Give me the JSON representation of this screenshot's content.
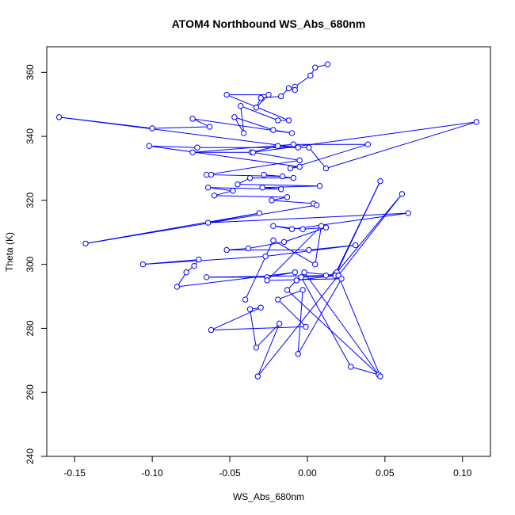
{
  "chart_data": {
    "type": "line",
    "title": "ATOM4 Northbound WS_Abs_680nm",
    "xlabel": "WS_Abs_680nm",
    "ylabel": "Theta (K)",
    "xlim": [
      -0.168,
      0.118
    ],
    "ylim": [
      240,
      368
    ],
    "xticks": [
      -0.15,
      -0.1,
      -0.05,
      0.0,
      0.05,
      0.1
    ],
    "xtick_labels": [
      "-0.15",
      "-0.10",
      "-0.05",
      "0.00",
      "0.05",
      "0.10"
    ],
    "yticks": [
      240,
      260,
      280,
      300,
      320,
      340,
      360
    ],
    "ytick_labels": [
      "240",
      "260",
      "280",
      "300",
      "320",
      "340",
      "360"
    ],
    "grid": false,
    "series_color": "#0000ff",
    "marker": "open-circle",
    "series": [
      {
        "x": [
          0.013,
          0.005,
          0.002,
          -0.008,
          -0.008,
          -0.012,
          -0.017,
          -0.03,
          -0.033,
          -0.025,
          -0.052,
          -0.012,
          -0.019,
          -0.043,
          -0.041,
          -0.047,
          -0.022,
          -0.01,
          -0.074,
          -0.063,
          -0.1,
          -0.16,
          -0.006,
          -0.019,
          -0.036,
          -0.074,
          -0.009,
          0.039,
          -0.011,
          -0.005,
          -0.102,
          -0.071,
          0.001,
          0.012,
          0.109,
          -0.035,
          -0.005,
          -0.065,
          -0.062,
          -0.016,
          -0.028,
          -0.009,
          -0.037,
          -0.045,
          0.008,
          -0.029,
          -0.017,
          -0.064,
          -0.048,
          -0.06,
          -0.013,
          -0.023,
          0.004,
          0.006,
          -0.143,
          -0.031,
          -0.064,
          0.065,
          -0.01,
          -0.022,
          -0.003,
          0.012,
          -0.015,
          -0.038,
          -0.052,
          0.001,
          0.031,
          -0.027,
          -0.106,
          -0.07,
          -0.073,
          -0.078,
          -0.084,
          -0.008,
          -0.026,
          -0.065,
          0.012,
          0.018,
          0.047,
          0.019,
          0.061,
          0.02,
          -0.004,
          0.028,
          0.046,
          -0.002,
          0.018,
          -0.007,
          -0.013,
          0.047,
          0.02,
          -0.032,
          -0.018,
          -0.033,
          -0.037,
          -0.03,
          -0.062,
          -0.001,
          -0.019,
          -0.003,
          -0.006,
          0.022,
          -0.026,
          0.009,
          0.005,
          -0.022,
          -0.04
        ],
        "y": [
          362.5,
          361.5,
          359.0,
          355.5,
          354.5,
          355.0,
          352.5,
          352.0,
          349.0,
          353.0,
          353.0,
          345.0,
          345.0,
          349.5,
          341.0,
          346.0,
          342.0,
          341.0,
          345.5,
          343.0,
          342.5,
          346.0,
          336.5,
          337.0,
          335.0,
          335.0,
          337.5,
          337.5,
          330.0,
          330.5,
          337.0,
          336.5,
          336.5,
          330.0,
          344.5,
          335.0,
          332.5,
          328.0,
          328.0,
          327.5,
          328.0,
          327.0,
          327.0,
          325.0,
          324.5,
          324.0,
          323.5,
          324.0,
          323.0,
          321.5,
          321.0,
          320.0,
          319.0,
          318.5,
          306.5,
          316.0,
          313.0,
          316.0,
          311.0,
          312.0,
          311.0,
          311.5,
          307.0,
          305.0,
          304.5,
          304.5,
          306.0,
          302.5,
          300.0,
          301.5,
          299.5,
          297.5,
          293.0,
          297.5,
          296.0,
          296.0,
          296.5,
          297.0,
          326.0,
          297.5,
          322.0,
          296.5,
          296.0,
          268.0,
          265.5,
          297.5,
          296.5,
          295.0,
          292.0,
          265.0,
          296.5,
          265.0,
          281.5,
          274.0,
          286.0,
          286.5,
          279.5,
          280.5,
          289.0,
          292.0,
          272.0,
          295.5,
          295.0,
          312.0,
          300.0,
          307.5,
          289.0
        ]
      }
    ]
  }
}
